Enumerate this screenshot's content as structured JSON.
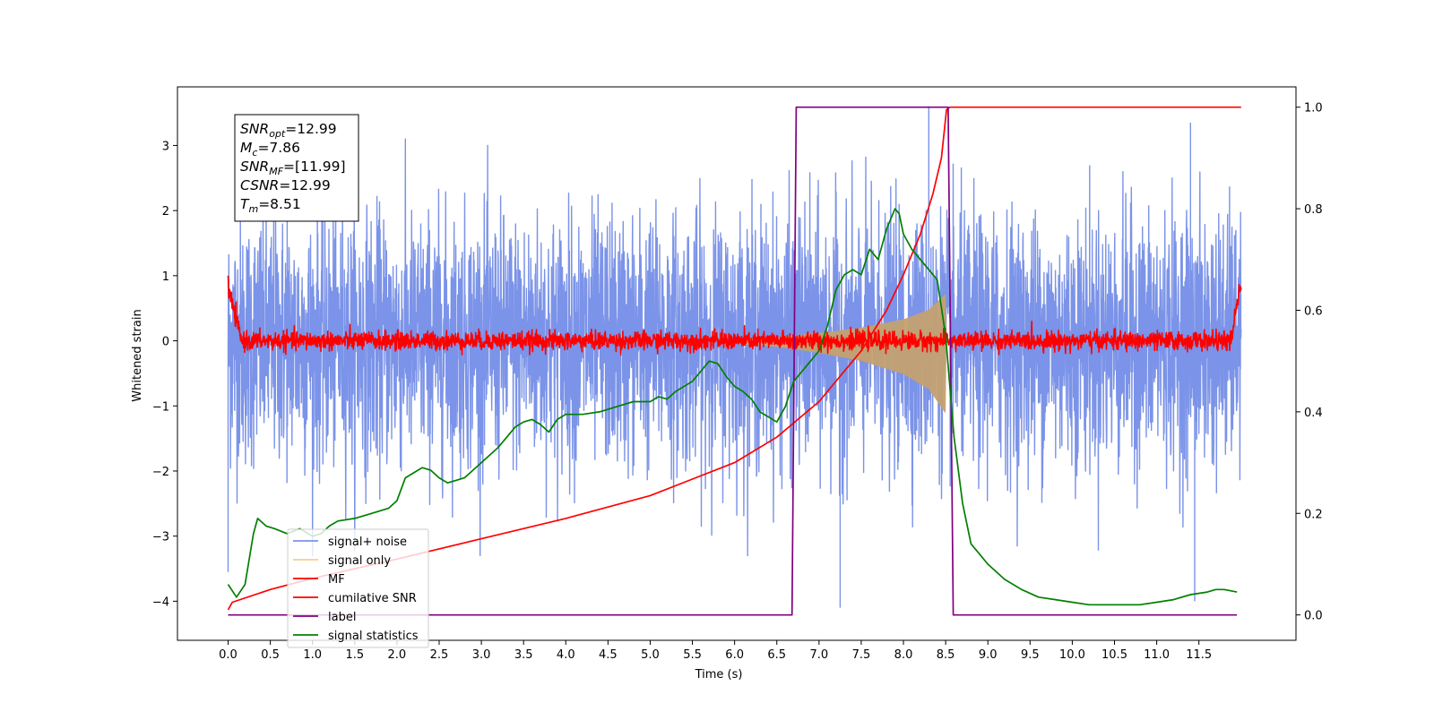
{
  "chart_data": {
    "type": "line",
    "title": "",
    "xlabel": "Time (s)",
    "ylabel": "Whitened strain",
    "y2label": "",
    "xlim": [
      -0.6,
      12.65
    ],
    "ylim": [
      -4.6,
      3.9
    ],
    "y2lim": [
      -0.05,
      1.04
    ],
    "xticks": [
      0.0,
      0.5,
      1.0,
      1.5,
      2.0,
      2.5,
      3.0,
      3.5,
      4.0,
      4.5,
      5.0,
      5.5,
      6.0,
      6.5,
      7.0,
      7.5,
      8.0,
      8.5,
      9.0,
      9.5,
      10.0,
      10.5,
      11.0,
      11.5
    ],
    "xtick_labels": [
      "0.0",
      "0.5",
      "1.0",
      "1.5",
      "2.0",
      "2.5",
      "3.0",
      "3.5",
      "4.0",
      "4.5",
      "5.0",
      "5.5",
      "6.0",
      "6.5",
      "7.0",
      "7.5",
      "8.0",
      "8.5",
      "9.0",
      "9.5",
      "10.0",
      "10.5",
      "11.0",
      "11.5"
    ],
    "yticks": [
      -4,
      -3,
      -2,
      -1,
      0,
      1,
      2,
      3
    ],
    "ytick_labels": [
      "−4",
      "−3",
      "−2",
      "−1",
      "0",
      "1",
      "2",
      "3"
    ],
    "y2ticks": [
      0.0,
      0.2,
      0.4,
      0.6,
      0.8,
      1.0
    ],
    "y2tick_labels": [
      "0.0",
      "0.2",
      "0.4",
      "0.6",
      "0.8",
      "1.0"
    ],
    "grid": false,
    "legend_position": "lower-left",
    "info_box": {
      "position": "top-left",
      "lines": [
        {
          "main": "SNR",
          "sub": "opt",
          "rest": "=12.99"
        },
        {
          "main": "M",
          "sub": "c",
          "rest": "=7.86"
        },
        {
          "main": "SNR",
          "sub": "MF",
          "rest": "=[11.99]"
        },
        {
          "main": "CSNR",
          "sub": "",
          "rest": "=12.99"
        },
        {
          "main": "T",
          "sub": "m",
          "rest": "=8.51"
        }
      ]
    },
    "series": [
      {
        "name": "signal+ noise",
        "axis": "left",
        "color": "#7b93e8",
        "kind": "noise-band",
        "x_range": [
          0.0,
          12.0
        ],
        "approx_std": 0.95,
        "approx_peaks": [
          [
            0.7,
            3.45
          ],
          [
            8.3,
            3.6
          ],
          [
            11.4,
            3.35
          ],
          [
            7.25,
            -4.1
          ],
          [
            11.45,
            -4.0
          ],
          [
            0.0,
            -3.55
          ]
        ]
      },
      {
        "name": "signal only",
        "axis": "left",
        "color": "#c4a070",
        "kind": "chirp-envelope",
        "envelope": [
          [
            6.0,
            0.03
          ],
          [
            6.5,
            0.06
          ],
          [
            7.0,
            0.12
          ],
          [
            7.5,
            0.2
          ],
          [
            8.0,
            0.33
          ],
          [
            8.3,
            0.48
          ],
          [
            8.5,
            0.72
          ],
          [
            8.51,
            0.0
          ]
        ]
      },
      {
        "name": "MF",
        "axis": "left",
        "color": "#ff0000",
        "kind": "noise-band",
        "x_range": [
          0.0,
          12.0
        ],
        "approx_std": 0.07,
        "approx_peaks": [
          [
            0.0,
            1.0
          ],
          [
            12.0,
            0.97
          ],
          [
            0.0,
            -0.1
          ]
        ]
      },
      {
        "name": "cumilative SNR",
        "axis": "right",
        "color": "#ff0000",
        "kind": "line",
        "x": [
          0.0,
          0.05,
          0.5,
          1.0,
          2.0,
          3.0,
          4.0,
          5.0,
          6.0,
          6.5,
          7.0,
          7.5,
          7.8,
          8.0,
          8.2,
          8.35,
          8.45,
          8.51,
          8.55,
          12.0
        ],
        "y": [
          0.01,
          0.025,
          0.05,
          0.072,
          0.11,
          0.15,
          0.19,
          0.235,
          0.3,
          0.35,
          0.42,
          0.52,
          0.6,
          0.67,
          0.75,
          0.83,
          0.9,
          0.995,
          1.0,
          1.0
        ]
      },
      {
        "name": "label",
        "axis": "right",
        "color": "#800080",
        "kind": "line",
        "x": [
          0.0,
          6.68,
          6.73,
          8.48,
          8.53,
          8.59,
          11.95
        ],
        "y": [
          0.0,
          0.0,
          1.0,
          1.0,
          1.0,
          0.0,
          0.0
        ]
      },
      {
        "name": "signal statistics",
        "axis": "right",
        "color": "#008000",
        "kind": "line",
        "x": [
          0.0,
          0.1,
          0.2,
          0.3,
          0.35,
          0.45,
          0.55,
          0.7,
          0.85,
          1.0,
          1.1,
          1.2,
          1.3,
          1.5,
          1.7,
          1.9,
          2.0,
          2.1,
          2.2,
          2.3,
          2.4,
          2.5,
          2.6,
          2.7,
          2.8,
          3.0,
          3.2,
          3.4,
          3.5,
          3.6,
          3.7,
          3.8,
          3.9,
          4.0,
          4.2,
          4.4,
          4.6,
          4.8,
          5.0,
          5.1,
          5.2,
          5.3,
          5.5,
          5.6,
          5.7,
          5.8,
          5.9,
          6.0,
          6.1,
          6.2,
          6.3,
          6.5,
          6.6,
          6.7,
          6.8,
          6.9,
          7.0,
          7.1,
          7.2,
          7.3,
          7.4,
          7.5,
          7.6,
          7.7,
          7.8,
          7.9,
          7.95,
          8.0,
          8.1,
          8.2,
          8.3,
          8.4,
          8.5,
          8.6,
          8.7,
          8.8,
          8.9,
          9.0,
          9.2,
          9.4,
          9.6,
          9.8,
          10.0,
          10.2,
          10.5,
          10.8,
          11.0,
          11.2,
          11.4,
          11.6,
          11.7,
          11.8,
          11.95
        ],
        "y": [
          0.06,
          0.035,
          0.06,
          0.16,
          0.19,
          0.175,
          0.17,
          0.16,
          0.17,
          0.155,
          0.16,
          0.175,
          0.185,
          0.19,
          0.2,
          0.21,
          0.225,
          0.27,
          0.28,
          0.29,
          0.285,
          0.27,
          0.26,
          0.265,
          0.27,
          0.3,
          0.33,
          0.37,
          0.38,
          0.385,
          0.375,
          0.36,
          0.385,
          0.395,
          0.395,
          0.4,
          0.41,
          0.42,
          0.42,
          0.43,
          0.425,
          0.44,
          0.46,
          0.48,
          0.5,
          0.495,
          0.47,
          0.45,
          0.44,
          0.425,
          0.4,
          0.38,
          0.41,
          0.46,
          0.48,
          0.5,
          0.52,
          0.57,
          0.64,
          0.67,
          0.68,
          0.67,
          0.72,
          0.7,
          0.76,
          0.8,
          0.79,
          0.75,
          0.72,
          0.7,
          0.68,
          0.66,
          0.55,
          0.35,
          0.22,
          0.14,
          0.12,
          0.1,
          0.07,
          0.05,
          0.035,
          0.03,
          0.025,
          0.02,
          0.02,
          0.02,
          0.025,
          0.03,
          0.04,
          0.045,
          0.05,
          0.05,
          0.045
        ]
      }
    ]
  }
}
